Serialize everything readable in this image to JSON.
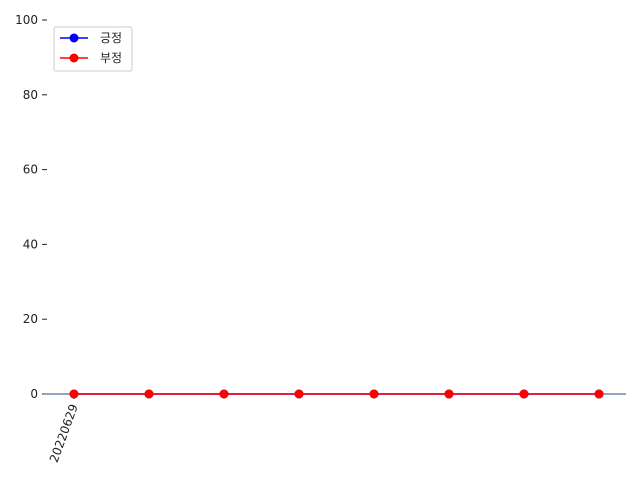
{
  "chart_data": {
    "type": "line",
    "x": [
      "20220629",
      "",
      "",
      "",
      "",
      "",
      "",
      ""
    ],
    "series": [
      {
        "name": "긍정",
        "values": [
          0,
          0,
          0,
          0,
          0,
          0,
          0,
          0
        ],
        "color": "#0000ff"
      },
      {
        "name": "부정",
        "values": [
          0,
          0,
          0,
          0,
          0,
          0,
          0,
          0
        ],
        "color": "#ff0000"
      }
    ],
    "ylim": [
      0,
      100
    ],
    "yticks": [
      "0",
      "20",
      "40",
      "60",
      "80",
      "100"
    ],
    "xticks": [
      "20220629"
    ],
    "grid": false,
    "legend_position": "top-left",
    "baseline_color": "#1f4e79"
  }
}
